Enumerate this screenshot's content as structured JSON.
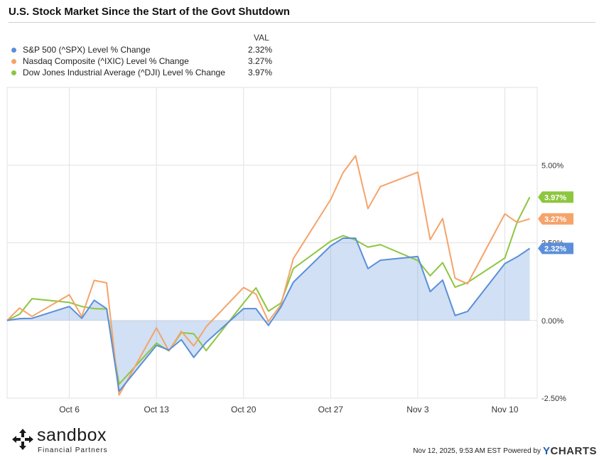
{
  "chart_data": {
    "type": "line",
    "title": "U.S. Stock Market Since the Start of the Govt Shutdown",
    "legend_header": "VAL",
    "x_tick_labels": [
      "Oct 6",
      "Oct 13",
      "Oct 20",
      "Oct 27",
      "Nov 3",
      "Nov 10"
    ],
    "x_tick_days": [
      3,
      10,
      17,
      24,
      31,
      38
    ],
    "y_tick_labels": [
      "5.00%",
      "2.50%",
      "0.00%",
      "-2.50%"
    ],
    "y_ticks": [
      5,
      2.5,
      0,
      -2.5
    ],
    "ylim": [
      -2.5,
      7.5
    ],
    "xlim": [
      -2,
      40.6
    ],
    "days": [
      -2,
      -1,
      0,
      3,
      4,
      5,
      6,
      7,
      10,
      11,
      12,
      13,
      14,
      17,
      18,
      19,
      20,
      21,
      24,
      25,
      26,
      27,
      28,
      31,
      32,
      33,
      34,
      35,
      38,
      39,
      40
    ],
    "series": [
      {
        "name": "S&P 500 (^SPX) Level % Change",
        "value_label": "2.32%",
        "color": "#5b8fd9",
        "fill": true,
        "values": [
          0,
          0.06,
          0.07,
          0.45,
          0.07,
          0.65,
          0.38,
          -2.28,
          -0.8,
          -0.95,
          -0.62,
          -1.19,
          -0.7,
          0.38,
          0.38,
          -0.16,
          0.43,
          1.23,
          2.4,
          2.65,
          2.65,
          1.67,
          1.94,
          2.06,
          0.93,
          1.3,
          0.16,
          0.29,
          1.83,
          2.05,
          2.32
        ]
      },
      {
        "name": "Nasdaq Composite (^IXIC) Level % Change",
        "value_label": "3.27%",
        "color": "#f5a36a",
        "fill": false,
        "values": [
          0,
          0.4,
          0.13,
          0.83,
          0.13,
          1.29,
          1.21,
          -2.4,
          -0.24,
          -0.98,
          -0.35,
          -0.82,
          -0.2,
          1.06,
          0.85,
          -0.03,
          0.5,
          1.99,
          3.89,
          4.76,
          5.3,
          3.6,
          4.31,
          4.77,
          2.6,
          3.28,
          1.36,
          1.18,
          3.43,
          3.15,
          3.27
        ]
      },
      {
        "name": "Dow Jones Industrial Average (^DJI) Level % Change",
        "value_label": "3.97%",
        "color": "#8dc63f",
        "fill": false,
        "values": [
          0,
          0.2,
          0.7,
          0.58,
          0.45,
          0.38,
          0.37,
          -2.05,
          -0.73,
          -0.98,
          -0.39,
          -0.43,
          -0.97,
          0.56,
          1.05,
          0.3,
          0.56,
          1.67,
          2.55,
          2.73,
          2.59,
          2.36,
          2.44,
          1.93,
          1.44,
          1.86,
          1.07,
          1.22,
          2.01,
          3.18,
          3.97
        ]
      }
    ],
    "grid": "both"
  },
  "footer": {
    "logo_name": "sandbox",
    "logo_tagline": "Financial Partners",
    "timestamp": "Nov 12, 2025, 9:53 AM EST",
    "powered_by": "Powered by",
    "brand_y": "Y",
    "brand_rest": "CHARTS"
  }
}
